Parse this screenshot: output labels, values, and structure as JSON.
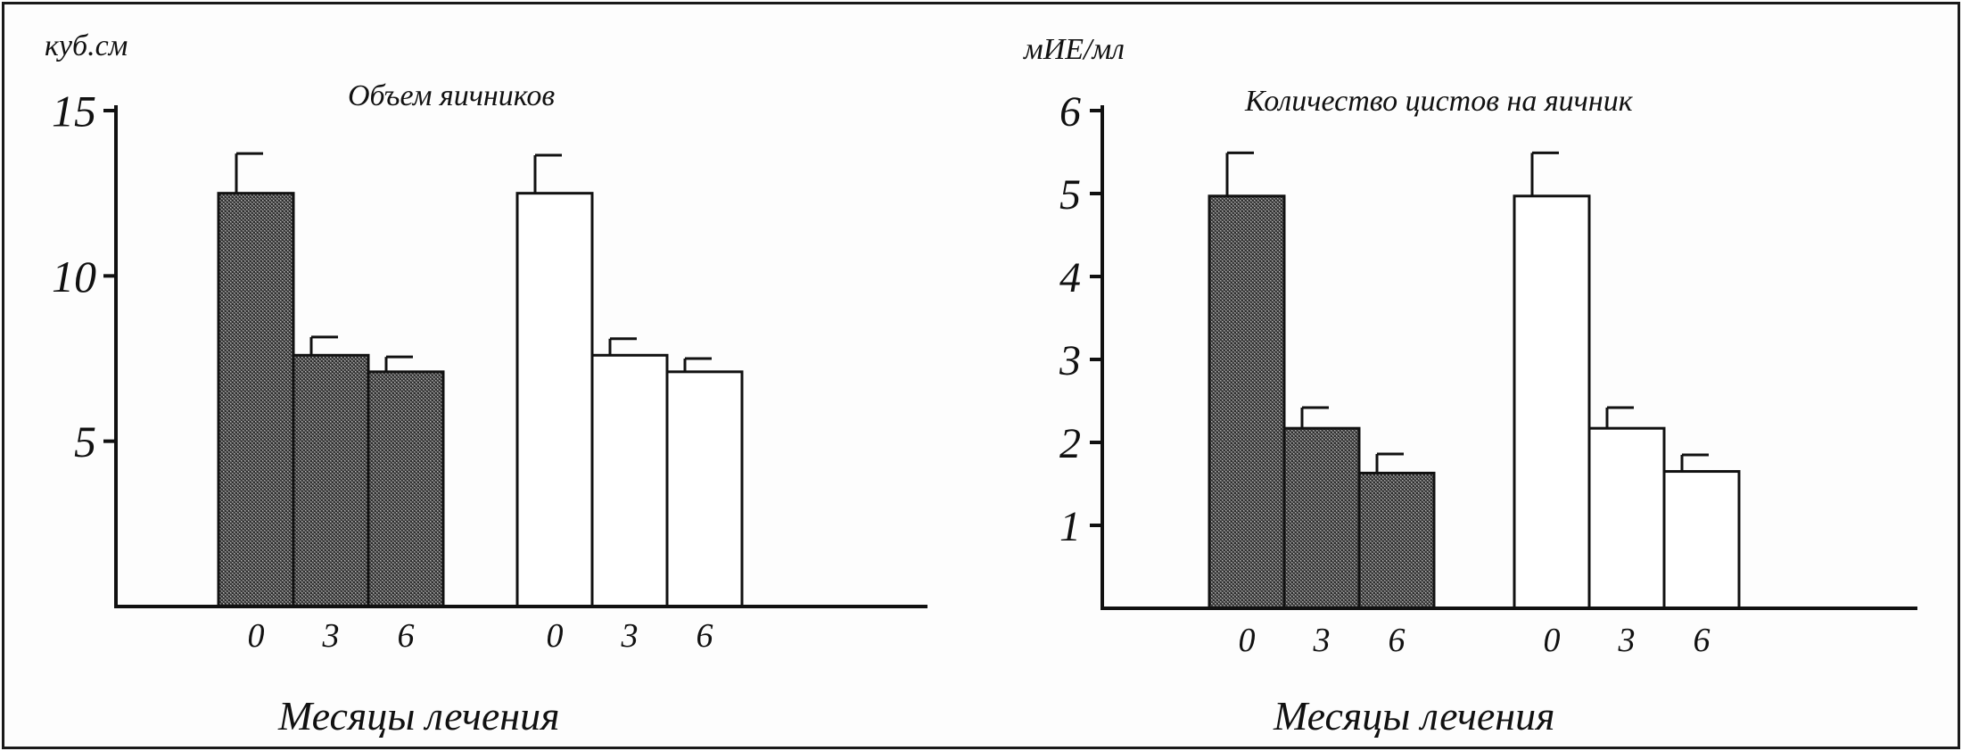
{
  "chart_data": [
    {
      "type": "bar",
      "title": "Объем яичников",
      "ylabel": "куб.см",
      "xlabel": "Месяцы лечения",
      "ylim": [
        0,
        15
      ],
      "yticks": [
        5,
        10,
        15
      ],
      "tick_labels": [
        "5",
        "10",
        "15"
      ],
      "categories": [
        "0",
        "3",
        "6"
      ],
      "series": [
        {
          "fill": "hatched-dark",
          "values": [
            12.5,
            7.6,
            7.1
          ],
          "errors": [
            1.2,
            0.55,
            0.45
          ]
        },
        {
          "fill": "white",
          "values": [
            12.5,
            7.6,
            7.1
          ],
          "errors": [
            1.15,
            0.5,
            0.4
          ]
        }
      ],
      "grid": false,
      "legend": "none"
    },
    {
      "type": "bar",
      "title": "Количество цистов на яичник",
      "ylabel": "мИЕ/мл",
      "xlabel": "Месяцы лечения",
      "ylim": [
        0,
        6
      ],
      "yticks": [
        1,
        2,
        3,
        4,
        5,
        6
      ],
      "tick_labels": [
        "1",
        "2",
        "3",
        "4",
        "5",
        "6"
      ],
      "categories": [
        "0",
        "3",
        "6"
      ],
      "series": [
        {
          "fill": "hatched-dark",
          "values": [
            4.97,
            2.17,
            1.63
          ],
          "errors": [
            0.52,
            0.25,
            0.23
          ]
        },
        {
          "fill": "white",
          "values": [
            4.97,
            2.17,
            1.65
          ],
          "errors": [
            0.52,
            0.25,
            0.2
          ]
        }
      ],
      "grid": false,
      "legend": "none"
    }
  ],
  "colors": {
    "axis": "#111111",
    "dark_fill": "#5a5a5a",
    "white_fill": "#ffffff"
  }
}
